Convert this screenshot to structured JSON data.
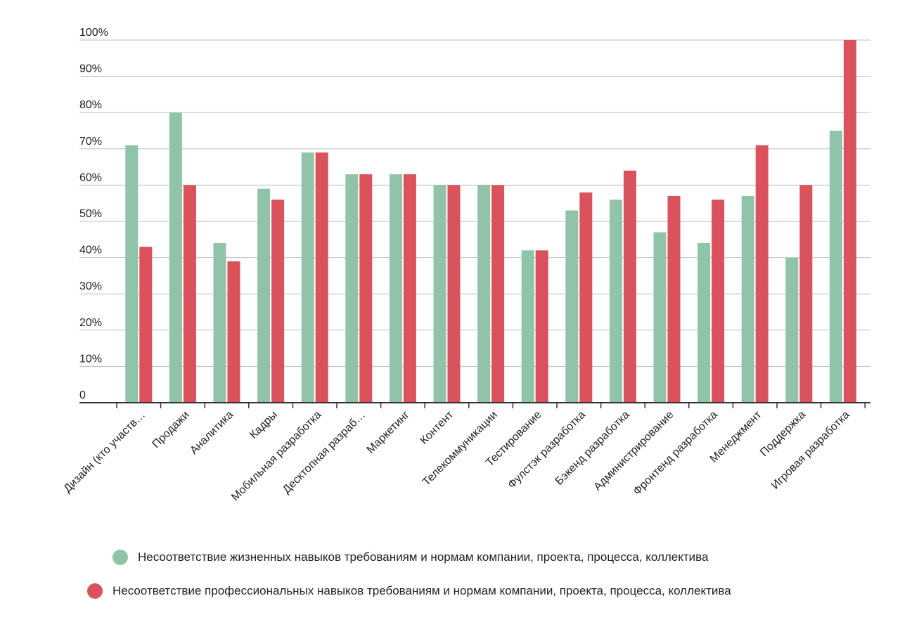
{
  "chart_data": {
    "type": "bar",
    "categories": [
      "Дизайн (кто участв…",
      "Продажи",
      "Аналитика",
      "Кадры",
      "Мобильная разработка",
      "Десктопная разраб…",
      "Маркетинг",
      "Контент",
      "Телекоммуникации",
      "Тестирование",
      "Фулстэк разработка",
      "Бэкенд разработка",
      "Администрирование",
      "Фронтенд разработка",
      "Менеджмент",
      "Поддержка",
      "Игровая разработка"
    ],
    "series": [
      {
        "name": "Несоответствие жизненных навыков требованиям и нормам компании, проекта, процесса, коллектива",
        "color": "#8fc4a9",
        "values": [
          71,
          80,
          44,
          59,
          69,
          63,
          63,
          60,
          60,
          42,
          53,
          56,
          47,
          44,
          57,
          40,
          75
        ]
      },
      {
        "name": "Несоответствие профессиональных навыков требованиям и нормам компании, проекта, процесса, коллектива",
        "color": "#d9525c",
        "values": [
          43,
          60,
          39,
          56,
          69,
          63,
          63,
          60,
          60,
          42,
          58,
          64,
          57,
          56,
          71,
          60,
          100
        ]
      }
    ],
    "yticks": [
      "0",
      "10%",
      "20%",
      "30%",
      "40%",
      "50%",
      "60%",
      "70%",
      "80%",
      "90%",
      "100%"
    ],
    "ylim": [
      0,
      100
    ],
    "grid": true,
    "legend_position": "bottom",
    "title": "",
    "xlabel": "",
    "ylabel": ""
  }
}
